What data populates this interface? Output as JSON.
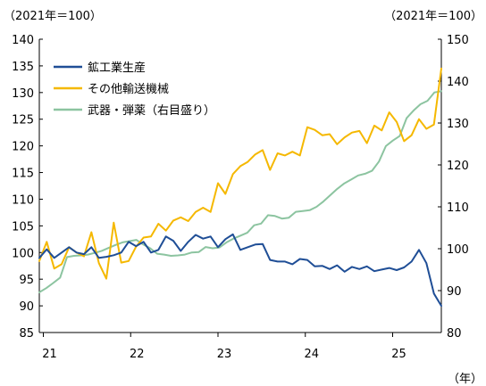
{
  "chart_data": {
    "type": "line",
    "left_axis_unit": "（2021年＝100）",
    "right_axis_unit": "（2021年＝100）",
    "x_unit": "（年）",
    "x_ticks": [
      "21",
      "22",
      "23",
      "24",
      "25"
    ],
    "x_start": "2021-01",
    "ylim_left": [
      85,
      140
    ],
    "yticks_left": [
      85,
      90,
      95,
      100,
      105,
      110,
      115,
      120,
      125,
      130,
      135,
      140
    ],
    "ylim_right": [
      80,
      150
    ],
    "yticks_right": [
      80,
      90,
      100,
      110,
      120,
      130,
      140,
      150
    ],
    "grid": false,
    "legend_position": "top-left",
    "series": [
      {
        "name": "鉱工業生産",
        "axis": "left",
        "color": "#1f4e96",
        "values": [
          99.0,
          100.6,
          99.0,
          100.0,
          101.0,
          100.0,
          99.7,
          101.0,
          99.0,
          99.2,
          99.5,
          100.0,
          102.0,
          101.2,
          102.0,
          100.0,
          100.5,
          103.0,
          102.2,
          100.3,
          102.0,
          103.3,
          102.6,
          103.0,
          101.0,
          102.5,
          103.4,
          100.5,
          101.0,
          101.5,
          101.6,
          98.6,
          98.3,
          98.3,
          97.8,
          98.8,
          98.6,
          97.4,
          97.5,
          96.9,
          97.6,
          96.4,
          97.3,
          96.9,
          97.4,
          96.5,
          96.8,
          97.1,
          96.7,
          97.2,
          98.3,
          100.5,
          98.0,
          92.3,
          90.0
        ]
      },
      {
        "name": "その他輸送機械",
        "axis": "left",
        "color": "#f5b800",
        "values": [
          98.4,
          102.0,
          97.0,
          97.8,
          101.0,
          100.0,
          99.3,
          103.8,
          98.0,
          95.1,
          105.6,
          98.1,
          98.4,
          101.1,
          102.8,
          103.0,
          105.4,
          104.1,
          106.0,
          106.6,
          105.9,
          107.6,
          108.4,
          107.6,
          113.0,
          111.0,
          114.7,
          116.2,
          117.0,
          118.4,
          119.2,
          115.5,
          118.6,
          118.2,
          118.9,
          118.2,
          123.5,
          123.0,
          122.0,
          122.2,
          120.3,
          121.6,
          122.5,
          122.8,
          120.5,
          123.8,
          122.9,
          126.3,
          124.5,
          120.9,
          122.0,
          125.0,
          123.2,
          124.0,
          134.5
        ]
      },
      {
        "name": "武器・弾薬（右目盛り）",
        "axis": "right",
        "color": "#8cc4a0",
        "values": [
          89.6,
          90.6,
          91.8,
          93.1,
          98.0,
          98.3,
          98.4,
          98.6,
          99.0,
          99.5,
          100.2,
          100.9,
          101.5,
          101.8,
          102.1,
          101.0,
          100.1,
          98.8,
          98.6,
          98.3,
          98.4,
          98.6,
          99.1,
          99.2,
          100.4,
          100.1,
          100.3,
          101.5,
          102.4,
          103.1,
          103.8,
          105.6,
          106.0,
          108.0,
          107.8,
          107.2,
          107.4,
          108.8,
          109.0,
          109.2,
          110.0,
          111.3,
          112.8,
          114.3,
          115.6,
          116.5,
          117.5,
          117.9,
          118.6,
          120.8,
          124.5,
          125.8,
          126.9,
          131.2,
          133.0,
          134.5,
          135.3,
          137.3,
          137.6
        ]
      }
    ]
  }
}
